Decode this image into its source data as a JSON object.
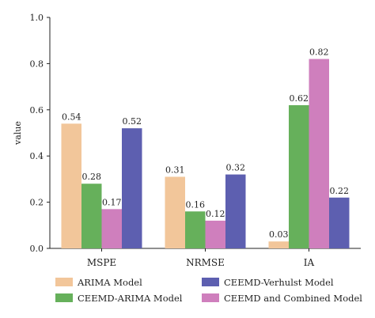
{
  "chart_data": {
    "type": "bar",
    "ylabel": "value",
    "ylim": [
      0,
      1.0
    ],
    "yticks": [
      "0.0",
      "0.2",
      "0.4",
      "0.6",
      "0.8",
      "1.0"
    ],
    "categories": [
      "MSPE",
      "NRMSE",
      "IA"
    ],
    "series": [
      {
        "name": "ARIMA Model",
        "color": "#f2c69a",
        "values": [
          0.54,
          0.31,
          0.03
        ],
        "labels": [
          "0.54",
          "0.31",
          "0.03"
        ]
      },
      {
        "name": "CEEMD-ARIMA Model",
        "color": "#66b05b",
        "values": [
          0.28,
          0.16,
          0.62
        ],
        "labels": [
          "0.28",
          "0.16",
          "0.62"
        ]
      },
      {
        "name": "CEEMD and Combined Model",
        "color": "#cf7fbd",
        "values": [
          0.17,
          0.12,
          0.82
        ],
        "labels": [
          "0.17",
          "0.12",
          "0.82"
        ]
      },
      {
        "name": "CEEMD-Verhulst Model",
        "color": "#5d5fb0",
        "values": [
          0.52,
          0.32,
          0.22
        ],
        "labels": [
          "0.52",
          "0.32",
          "0.22"
        ]
      }
    ],
    "legend_order": [
      0,
      3,
      1,
      2
    ],
    "grid": false,
    "legend_position": "bottom"
  }
}
